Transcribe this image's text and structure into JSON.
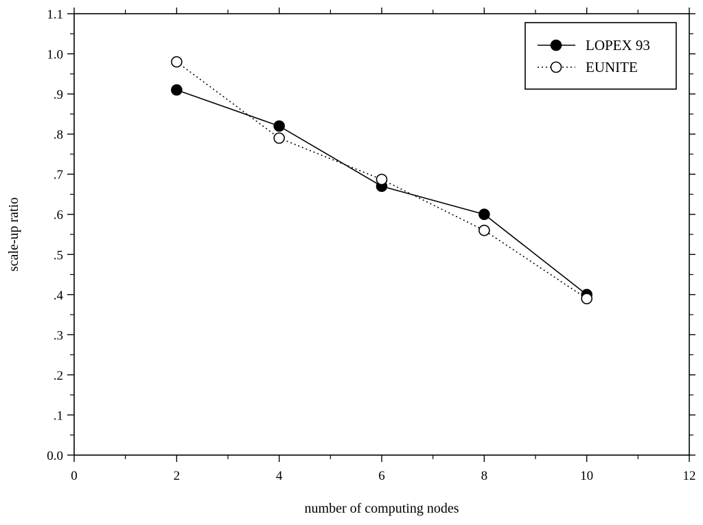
{
  "chart_data": {
    "type": "line",
    "xlabel": "number of computing nodes",
    "ylabel": "scale-up ratio",
    "xlim": [
      0,
      12
    ],
    "ylim": [
      0,
      1.1
    ],
    "x_ticks": [
      0,
      2,
      4,
      6,
      8,
      10,
      12
    ],
    "x_tick_labels": [
      "0",
      "2",
      "4",
      "6",
      "8",
      "10",
      "12"
    ],
    "y_ticks": [
      0,
      0.1,
      0.2,
      0.3,
      0.4,
      0.5,
      0.6,
      0.7,
      0.8,
      0.9,
      1.0,
      1.1
    ],
    "y_tick_labels": [
      "0.0",
      ".1",
      ".2",
      ".3",
      ".4",
      ".5",
      ".6",
      ".7",
      ".8",
      ".9",
      "1.0",
      "1.1"
    ],
    "grid": false,
    "legend_position": "top-right",
    "series": [
      {
        "name": "LOPEX 93",
        "x": [
          2,
          4,
          6,
          8,
          10
        ],
        "values": [
          0.91,
          0.82,
          0.67,
          0.6,
          0.4
        ],
        "line_style": "solid",
        "marker": "filled-circle",
        "color": "#000000"
      },
      {
        "name": "EUNITE",
        "x": [
          2,
          4,
          6,
          8,
          10
        ],
        "values": [
          0.98,
          0.79,
          0.687,
          0.56,
          0.39
        ],
        "line_style": "dotted",
        "marker": "open-circle",
        "color": "#000000"
      }
    ]
  }
}
